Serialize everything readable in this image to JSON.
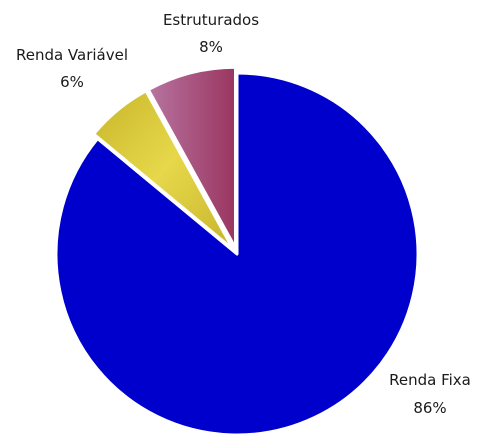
{
  "chart_data": {
    "type": "pie",
    "slices": [
      {
        "label": "Renda Fixa",
        "value": 86,
        "value_label": "86%",
        "color": "#0000CC",
        "exploded": false
      },
      {
        "label": "Renda Variável",
        "value": 6,
        "value_label": "6%",
        "color": "#D9C93A",
        "exploded": true
      },
      {
        "label": "Estruturados",
        "value": 8,
        "value_label": "8%",
        "color": "#A9567E",
        "exploded": true
      }
    ],
    "start": "12 o'clock",
    "direction": "clockwise",
    "legend": "none",
    "labels": "outside, category name above percentage"
  }
}
